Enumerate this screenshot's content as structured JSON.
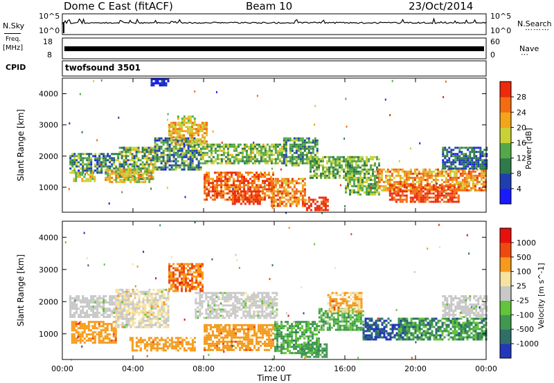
{
  "header": {
    "station": "Dome C East (fitACF)",
    "beam": "Beam 10",
    "date": "23/Oct/2014"
  },
  "strips": {
    "nsky_label": "N.Sky",
    "nsky_top": "10^5",
    "nsky_bottom": "10^0",
    "nsearch_label": "N.Search",
    "nsearch_top": "10^5",
    "nsearch_bottom": "10^0",
    "freq_label_top": "Freq.",
    "freq_label_unit": "[MHz]",
    "freq_top": "18",
    "freq_bottom": "8",
    "nave_label": "Nave",
    "nave_top": "60",
    "nave_bottom": "0",
    "cpid_label": "CPID",
    "cpid_value": "twofsound 3501"
  },
  "chart_data": [
    {
      "type": "heatmap",
      "panel": "power",
      "ylabel": "Slant Range [km]",
      "xlabel": "Time UT",
      "x_ticks": [
        "00:00",
        "04:00",
        "08:00",
        "12:00",
        "16:00",
        "20:00",
        "00:00"
      ],
      "y_ticks": [
        1000,
        2000,
        3000,
        4000
      ],
      "ylim": [
        200,
        4500
      ],
      "colorbar": {
        "label": "Power [dB]",
        "ticks": [
          "4",
          "8",
          "12",
          "16",
          "20",
          "24",
          "28"
        ],
        "colors": [
          "#1a1aff",
          "#1f3fb0",
          "#2f7a4a",
          "#55a84a",
          "#c8d236",
          "#f2a51a",
          "#f46c12",
          "#ec2a0c"
        ]
      },
      "patches": [
        {
          "t": [
            0.4,
            3.2
          ],
          "r": [
            1500,
            2100
          ],
          "lvl": [
            0.1,
            0.6
          ]
        },
        {
          "t": [
            3.2,
            5.2
          ],
          "r": [
            1300,
            2300
          ],
          "lvl": [
            0.2,
            0.7
          ]
        },
        {
          "t": [
            2.4,
            5.0
          ],
          "r": [
            1150,
            1600
          ],
          "lvl": [
            0.4,
            0.85
          ]
        },
        {
          "t": [
            0.6,
            1.8
          ],
          "r": [
            1200,
            1500
          ],
          "lvl": [
            0.4,
            0.8
          ]
        },
        {
          "t": [
            5.2,
            7.8
          ],
          "r": [
            1600,
            2600
          ],
          "lvl": [
            0.1,
            0.6
          ]
        },
        {
          "t": [
            6.0,
            8.2
          ],
          "r": [
            2400,
            3100
          ],
          "lvl": [
            0.5,
            0.85
          ]
        },
        {
          "t": [
            6.5,
            7.5
          ],
          "r": [
            3000,
            3300
          ],
          "lvl": [
            0.4,
            0.7
          ]
        },
        {
          "t": [
            7.8,
            12.5
          ],
          "r": [
            1750,
            2400
          ],
          "lvl": [
            0.3,
            0.65
          ]
        },
        {
          "t": [
            8.0,
            12.0
          ],
          "r": [
            600,
            1500
          ],
          "lvl": [
            0.65,
            0.98
          ]
        },
        {
          "t": [
            9.6,
            11.2
          ],
          "r": [
            450,
            900
          ],
          "lvl": [
            0.8,
            1.0
          ]
        },
        {
          "t": [
            11.8,
            13.8
          ],
          "r": [
            400,
            1300
          ],
          "lvl": [
            0.6,
            0.95
          ]
        },
        {
          "t": [
            12.5,
            14.5
          ],
          "r": [
            1700,
            2600
          ],
          "lvl": [
            0.2,
            0.55
          ]
        },
        {
          "t": [
            13.8,
            15.0
          ],
          "r": [
            300,
            700
          ],
          "lvl": [
            0.85,
            1.0
          ]
        },
        {
          "t": [
            14.0,
            16.5
          ],
          "r": [
            1300,
            2000
          ],
          "lvl": [
            0.3,
            0.6
          ]
        },
        {
          "t": [
            16.0,
            18.0
          ],
          "r": [
            800,
            2000
          ],
          "lvl": [
            0.3,
            0.6
          ]
        },
        {
          "t": [
            17.8,
            24.0
          ],
          "r": [
            900,
            1600
          ],
          "lvl": [
            0.55,
            0.9
          ]
        },
        {
          "t": [
            18.5,
            22.5
          ],
          "r": [
            550,
            1100
          ],
          "lvl": [
            0.75,
            1.0
          ]
        },
        {
          "t": [
            21.5,
            24.0
          ],
          "r": [
            1600,
            2300
          ],
          "lvl": [
            0.1,
            0.4
          ]
        },
        {
          "t": [
            5.0,
            6.0
          ],
          "r": [
            4300,
            4500
          ],
          "lvl": [
            0.0,
            0.3
          ]
        }
      ]
    },
    {
      "type": "heatmap",
      "panel": "velocity",
      "ylabel": "Slant Range [km]",
      "xlabel": "Time UT",
      "x_ticks": [
        "00:00",
        "04:00",
        "08:00",
        "12:00",
        "16:00",
        "20:00",
        "00:00"
      ],
      "y_ticks": [
        1000,
        2000,
        3000,
        4000
      ],
      "ylim": [
        200,
        4500
      ],
      "colorbar": {
        "label": "Velocity [m s^-1]",
        "ticks": [
          "1000",
          "500",
          "100",
          "25",
          "-25",
          "-100",
          "-500",
          "-1000"
        ],
        "colors": [
          "#2338b8",
          "#2f6f68",
          "#3f9850",
          "#62c43a",
          "#c8c8c8",
          "#f7e29e",
          "#f59a1c",
          "#ee4a10",
          "#e8100c"
        ]
      },
      "patches": [
        {
          "t": [
            0.4,
            3.5
          ],
          "r": [
            1500,
            2200
          ],
          "lvl": [
            4,
            4
          ]
        },
        {
          "t": [
            0.5,
            3.0
          ],
          "r": [
            700,
            1400
          ],
          "lvl": [
            6,
            6
          ]
        },
        {
          "t": [
            3.0,
            6.0
          ],
          "r": [
            1200,
            2400
          ],
          "lvl": [
            4,
            5
          ]
        },
        {
          "t": [
            3.8,
            7.5
          ],
          "r": [
            450,
            900
          ],
          "lvl": [
            6,
            6
          ]
        },
        {
          "t": [
            6.0,
            8.0
          ],
          "r": [
            2300,
            3200
          ],
          "lvl": [
            6,
            7
          ]
        },
        {
          "t": [
            7.5,
            12.2
          ],
          "r": [
            1500,
            2300
          ],
          "lvl": [
            4,
            4
          ]
        },
        {
          "t": [
            8.0,
            12.0
          ],
          "r": [
            500,
            1300
          ],
          "lvl": [
            6,
            6
          ]
        },
        {
          "t": [
            12.0,
            14.5
          ],
          "r": [
            400,
            1400
          ],
          "lvl": [
            2,
            3
          ]
        },
        {
          "t": [
            13.5,
            15.0
          ],
          "r": [
            300,
            700
          ],
          "lvl": [
            2,
            2
          ]
        },
        {
          "t": [
            14.5,
            17.0
          ],
          "r": [
            1100,
            1800
          ],
          "lvl": [
            2,
            3
          ]
        },
        {
          "t": [
            17.0,
            19.5
          ],
          "r": [
            800,
            1500
          ],
          "lvl": [
            0,
            1
          ]
        },
        {
          "t": [
            19.0,
            24.0
          ],
          "r": [
            800,
            1500
          ],
          "lvl": [
            1,
            3
          ]
        },
        {
          "t": [
            21.5,
            24.0
          ],
          "r": [
            1500,
            2200
          ],
          "lvl": [
            4,
            4
          ]
        },
        {
          "t": [
            15.0,
            17.0
          ],
          "r": [
            1700,
            2300
          ],
          "lvl": [
            5,
            6
          ]
        }
      ]
    }
  ]
}
